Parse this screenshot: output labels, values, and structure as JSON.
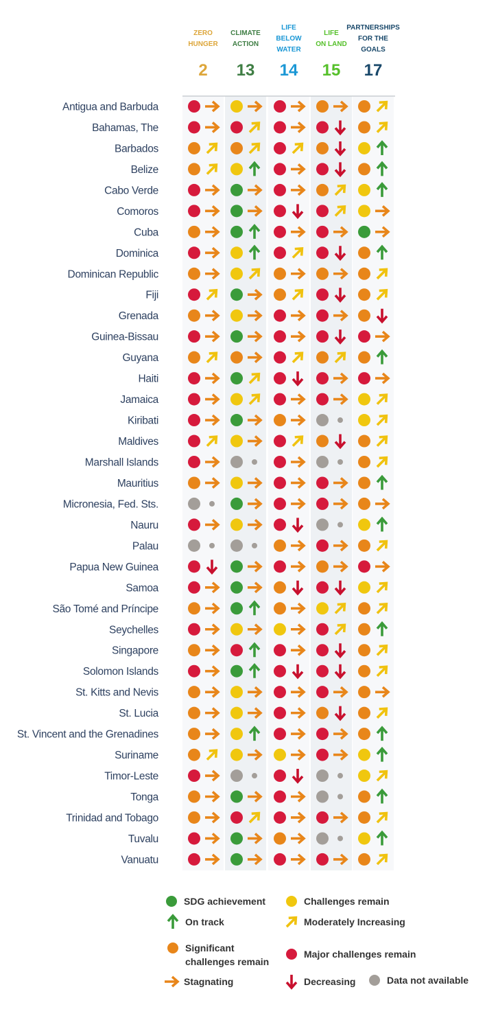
{
  "header": {
    "columns": [
      {
        "lines": [
          "ZERO",
          "HUNGER"
        ],
        "number": "2",
        "color": "#dda63a"
      },
      {
        "lines": [
          "CLIMATE",
          "ACTION"
        ],
        "number": "13",
        "color": "#3f7e44"
      },
      {
        "lines": [
          "LIFE",
          "BELOW",
          "WATER"
        ],
        "number": "14",
        "color": "#1a97d5"
      },
      {
        "lines": [
          "LIFE",
          "ON LAND"
        ],
        "number": "15",
        "color": "#56c02b"
      },
      {
        "lines": [
          "PARTNERSHIPS",
          "FOR THE",
          "GOALS"
        ],
        "number": "17",
        "color": "#19486a"
      }
    ]
  },
  "table": {
    "rows": [
      {
        "country": "Antigua and Barbuda",
        "cells": [
          "rs",
          "ys",
          "rs",
          "os",
          "om"
        ]
      },
      {
        "country": "Bahamas, The",
        "cells": [
          "rs",
          "rm",
          "rs",
          "rd",
          "om"
        ]
      },
      {
        "country": "Barbados",
        "cells": [
          "om",
          "om",
          "rm",
          "od",
          "yu"
        ]
      },
      {
        "country": "Belize",
        "cells": [
          "om",
          "yu",
          "rs",
          "rd",
          "ou"
        ]
      },
      {
        "country": "Cabo Verde",
        "cells": [
          "rs",
          "gs",
          "rs",
          "om",
          "yu"
        ]
      },
      {
        "country": "Comoros",
        "cells": [
          "rs",
          "gs",
          "rd",
          "rm",
          "ys"
        ]
      },
      {
        "country": "Cuba",
        "cells": [
          "os",
          "gu",
          "rs",
          "rs",
          "gs"
        ]
      },
      {
        "country": "Dominica",
        "cells": [
          "rs",
          "yu",
          "rm",
          "rd",
          "ou"
        ]
      },
      {
        "country": "Dominican Republic",
        "cells": [
          "os",
          "ym",
          "os",
          "os",
          "om"
        ]
      },
      {
        "country": "Fiji",
        "cells": [
          "rm",
          "gs",
          "om",
          "rd",
          "om"
        ]
      },
      {
        "country": "Grenada",
        "cells": [
          "os",
          "ys",
          "rs",
          "rs",
          "od"
        ]
      },
      {
        "country": "Guinea-Bissau",
        "cells": [
          "rs",
          "gs",
          "rs",
          "rd",
          "rs"
        ]
      },
      {
        "country": "Guyana",
        "cells": [
          "om",
          "os",
          "rm",
          "om",
          "ou"
        ]
      },
      {
        "country": "Haiti",
        "cells": [
          "rs",
          "gm",
          "rd",
          "rs",
          "rs"
        ]
      },
      {
        "country": "Jamaica",
        "cells": [
          "rs",
          "ym",
          "rs",
          "rs",
          "ym"
        ]
      },
      {
        "country": "Kiribati",
        "cells": [
          "rs",
          "gs",
          "os",
          "nn",
          "ym"
        ]
      },
      {
        "country": "Maldives",
        "cells": [
          "rm",
          "ys",
          "rm",
          "od",
          "om"
        ]
      },
      {
        "country": "Marshall Islands",
        "cells": [
          "rs",
          "nn",
          "rs",
          "nn",
          "om"
        ]
      },
      {
        "country": "Mauritius",
        "cells": [
          "os",
          "ys",
          "rs",
          "rs",
          "ou"
        ]
      },
      {
        "country": "Micronesia, Fed. Sts.",
        "cells": [
          "nn",
          "gs",
          "rs",
          "rs",
          "os"
        ]
      },
      {
        "country": "Nauru",
        "cells": [
          "rs",
          "ys",
          "rd",
          "nn",
          "yu"
        ]
      },
      {
        "country": "Palau",
        "cells": [
          "nn",
          "nn",
          "os",
          "rs",
          "om"
        ]
      },
      {
        "country": "Papua New Guinea",
        "cells": [
          "rd",
          "gs",
          "rs",
          "os",
          "rs"
        ]
      },
      {
        "country": "Samoa",
        "cells": [
          "rs",
          "gs",
          "od",
          "rd",
          "ym"
        ]
      },
      {
        "country": "São Tomé and Príncipe",
        "cells": [
          "os",
          "gu",
          "os",
          "ym",
          "om"
        ]
      },
      {
        "country": "Seychelles",
        "cells": [
          "rs",
          "ys",
          "ys",
          "rm",
          "ou"
        ]
      },
      {
        "country": "Singapore",
        "cells": [
          "os",
          "ru",
          "rs",
          "rd",
          "om"
        ]
      },
      {
        "country": "Solomon Islands",
        "cells": [
          "rs",
          "gu",
          "rd",
          "rd",
          "om"
        ]
      },
      {
        "country": "St. Kitts and Nevis",
        "cells": [
          "os",
          "ys",
          "rs",
          "rs",
          "os"
        ]
      },
      {
        "country": "St. Lucia",
        "cells": [
          "os",
          "ys",
          "rs",
          "od",
          "om"
        ]
      },
      {
        "country": "St. Vincent and the Grenadines",
        "cells": [
          "os",
          "yu",
          "rs",
          "rs",
          "ou"
        ]
      },
      {
        "country": "Suriname",
        "cells": [
          "om",
          "ys",
          "ys",
          "rs",
          "yu"
        ]
      },
      {
        "country": "Timor-Leste",
        "cells": [
          "rs",
          "nn",
          "rd",
          "nn",
          "ym"
        ]
      },
      {
        "country": "Tonga",
        "cells": [
          "os",
          "gs",
          "rs",
          "nn",
          "ou"
        ]
      },
      {
        "country": "Trinidad and Tobago",
        "cells": [
          "os",
          "rm",
          "rs",
          "rs",
          "om"
        ]
      },
      {
        "country": "Tuvalu",
        "cells": [
          "rs",
          "gs",
          "os",
          "nn",
          "yu"
        ]
      },
      {
        "country": "Vanuatu",
        "cells": [
          "rs",
          "gs",
          "rs",
          "rs",
          "om"
        ]
      }
    ]
  },
  "legend": {
    "items": [
      {
        "kind": "status",
        "code": "g",
        "label": "SDG achievement"
      },
      {
        "kind": "status",
        "code": "y",
        "label": "Challenges remain"
      },
      {
        "kind": "trend",
        "code": "u",
        "label": "On track"
      },
      {
        "kind": "trend",
        "code": "m",
        "label": "Moderately Increasing"
      },
      {
        "kind": "status",
        "code": "o",
        "label": [
          "Significant",
          "challenges remain"
        ]
      },
      {
        "kind": "status",
        "code": "r",
        "label": "Major challenges remain"
      },
      {
        "kind": "trend",
        "code": "s",
        "label": "Stagnating"
      },
      {
        "kind": "trend",
        "code": "d",
        "label": "Decreasing"
      },
      {
        "kind": "status",
        "code": "n",
        "label": "Data not available"
      }
    ]
  },
  "colors": {
    "status": {
      "g": "#3a9b3a",
      "y": "#f0c70f",
      "o": "#e8861a",
      "r": "#d61a3c",
      "n": "#a39e99"
    },
    "trend": {
      "u": "#3a9b3a",
      "m": "#f0c20f",
      "s": "#e8861a",
      "d": "#c8102e",
      "n": "#a39e99"
    }
  }
}
